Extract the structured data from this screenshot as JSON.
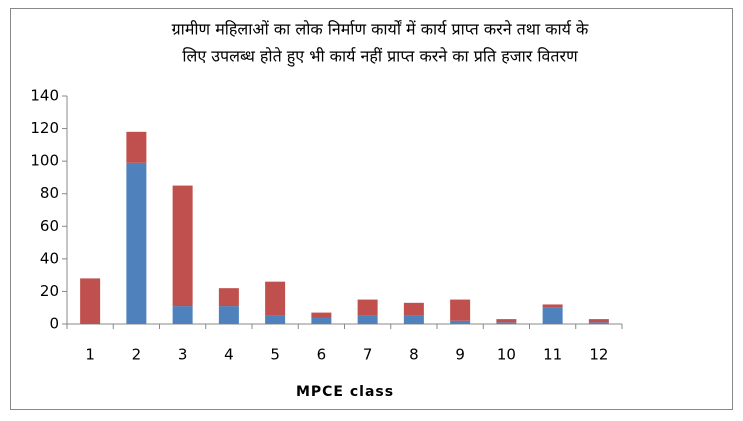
{
  "chart_data": {
    "type": "stacked_bar",
    "title": [
      "ग्रामीण महिलाओं का लोक निर्माण कार्यों में कार्य प्राप्त करने तथा कार्य के",
      "लिए उपलब्ध होते हुए भी कार्य नहीं प्राप्त करने का प्रति हजार वितरण"
    ],
    "x_label": "MPCE class",
    "categories": [
      "1",
      "2",
      "3",
      "4",
      "5",
      "6",
      "7",
      "8",
      "9",
      "10",
      "11",
      "12"
    ],
    "series": [
      {
        "color": "#4f81bd",
        "values": [
          0,
          99,
          11,
          11,
          5,
          4,
          5,
          5,
          2,
          1,
          10,
          1
        ]
      },
      {
        "color": "#c0504d",
        "values": [
          28,
          19,
          74,
          11,
          21,
          3,
          10,
          8,
          13,
          2,
          2,
          2
        ]
      }
    ],
    "ylim": [
      0,
      140
    ],
    "yticks": [
      0,
      20,
      40,
      60,
      80,
      100,
      120,
      140
    ],
    "grid": false
  }
}
